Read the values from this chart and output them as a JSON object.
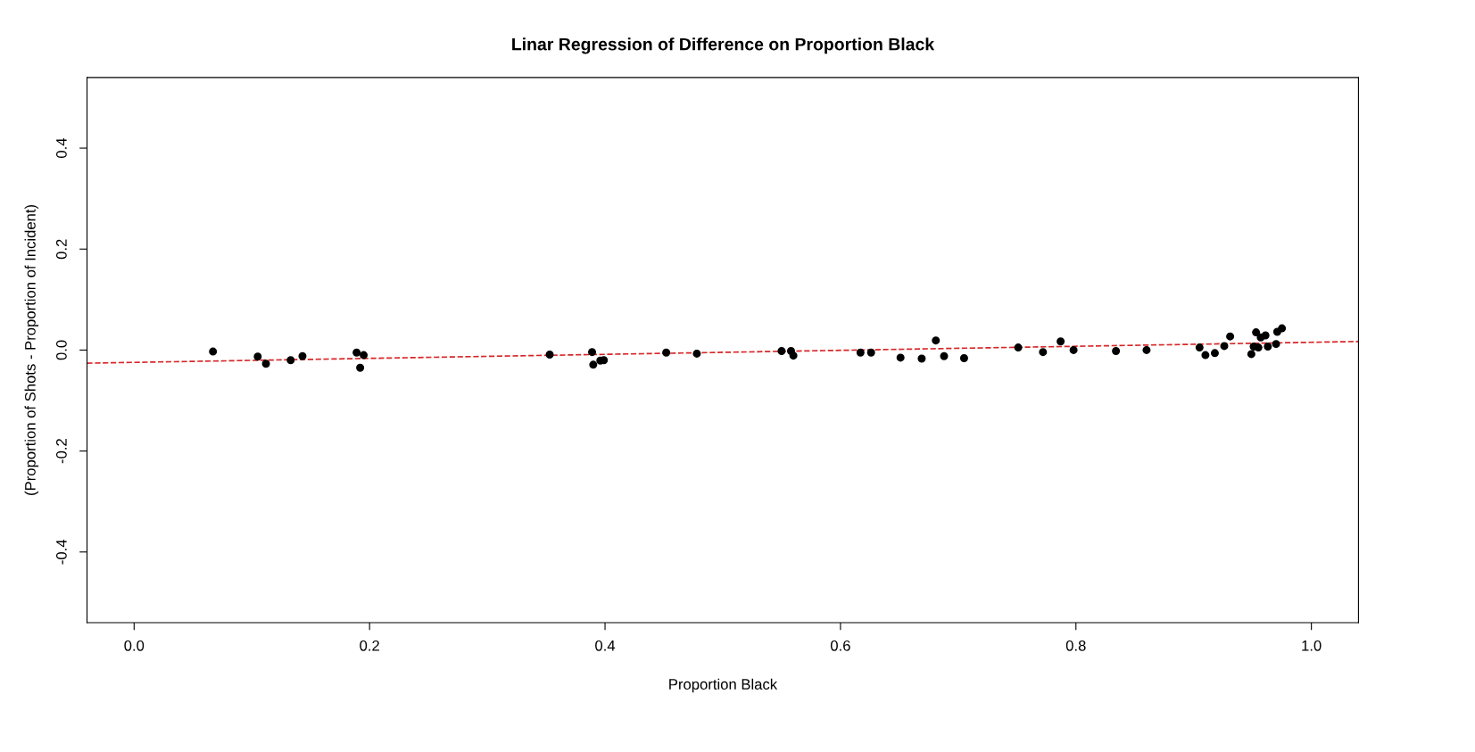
{
  "chart_data": {
    "type": "scatter",
    "title": "Linar Regression of Difference on Proportion Black",
    "xlabel": "Proportion Black",
    "ylabel": "(Proportion of Shots - Proportion of Incident)",
    "xlim": [
      -0.04,
      1.04
    ],
    "ylim": [
      -0.54,
      0.54
    ],
    "xticks": [
      {
        "value": 0,
        "label": "0.0"
      },
      0.2,
      0.4,
      0.6,
      0.8,
      {
        "value": 1,
        "label": "1.0"
      }
    ],
    "yticks": [
      -0.4,
      -0.2,
      {
        "value": 0,
        "label": "0.0"
      },
      0.2,
      0.4
    ],
    "grid": false,
    "marker": "circle",
    "series": [
      {
        "color": "#000000",
        "x": [
          0.067,
          0.105,
          0.112,
          0.133,
          0.143,
          0.189,
          0.195,
          0.192,
          0.353,
          0.389,
          0.39,
          0.396,
          0.399,
          0.452,
          0.478,
          0.55,
          0.558,
          0.56,
          0.617,
          0.626,
          0.651,
          0.669,
          0.681,
          0.688,
          0.705,
          0.751,
          0.772,
          0.787,
          0.798,
          0.834,
          0.86,
          0.905,
          0.91,
          0.918,
          0.926,
          0.931,
          0.949,
          0.951,
          0.953,
          0.955,
          0.957,
          0.961,
          0.963,
          0.97,
          0.971,
          0.975
        ],
        "values": [
          -0.003,
          -0.013,
          -0.027,
          -0.02,
          -0.012,
          -0.005,
          -0.01,
          -0.035,
          -0.009,
          -0.004,
          -0.029,
          -0.021,
          -0.02,
          -0.005,
          -0.007,
          -0.002,
          -0.002,
          -0.011,
          -0.005,
          -0.005,
          -0.015,
          -0.017,
          0.019,
          -0.012,
          -0.016,
          0.005,
          -0.004,
          0.017,
          0.0,
          -0.002,
          0.0,
          0.005,
          -0.01,
          -0.006,
          0.008,
          0.027,
          -0.008,
          0.007,
          0.035,
          0.005,
          0.025,
          0.029,
          0.007,
          0.012,
          0.036,
          0.043
        ]
      },
      {
        "type": "line",
        "color": "#d62728",
        "marker": "none",
        "line_style": "dashed",
        "x": [
          -0.04,
          1.04
        ],
        "values": [
          -0.026,
          0.017
        ]
      }
    ]
  }
}
